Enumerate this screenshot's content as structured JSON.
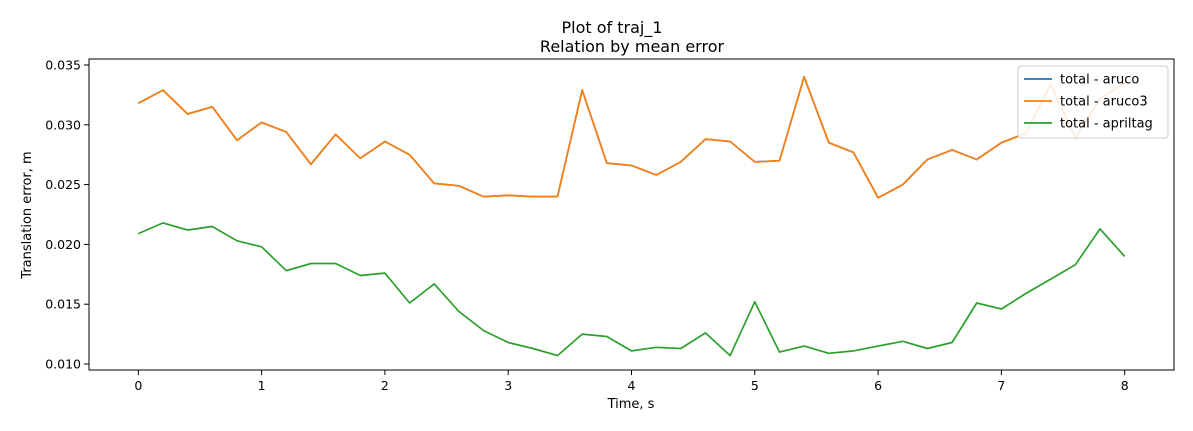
{
  "chart_data": {
    "type": "line",
    "title": "Plot of traj_1",
    "subtitle": "Relation by mean error",
    "xlabel": "Time, s",
    "ylabel": "Translation error, m",
    "xlim": [
      -0.4,
      8.4
    ],
    "ylim": [
      0.0095,
      0.0355
    ],
    "xticks": [
      0,
      1,
      2,
      3,
      4,
      5,
      6,
      7,
      8
    ],
    "xtick_labels": [
      "0",
      "1",
      "2",
      "3",
      "4",
      "5",
      "6",
      "7",
      "8"
    ],
    "yticks": [
      0.01,
      0.015,
      0.02,
      0.025,
      0.03,
      0.035
    ],
    "ytick_labels": [
      "0.010",
      "0.015",
      "0.020",
      "0.025",
      "0.030",
      "0.035"
    ],
    "grid": false,
    "legend_position": "top-right",
    "x": [
      0,
      0.2,
      0.4,
      0.6,
      0.8,
      1.0,
      1.2,
      1.4,
      1.6,
      1.8,
      2.0,
      2.2,
      2.4,
      2.6,
      2.8,
      3.0,
      3.2,
      3.4,
      3.6,
      3.8,
      4.0,
      4.2,
      4.4,
      4.6,
      4.8,
      5.0,
      5.2,
      5.4,
      5.6,
      5.8,
      6.0,
      6.2,
      6.4,
      6.6,
      6.8,
      7.0,
      7.2,
      7.4,
      7.6,
      7.8,
      8.0
    ],
    "series": [
      {
        "name": "total - aruco",
        "color": "#1f77b4",
        "values": [
          0.0318,
          0.0329,
          0.0309,
          0.0315,
          0.0287,
          0.0302,
          0.0294,
          0.0267,
          0.0292,
          0.0272,
          0.0286,
          0.0275,
          0.0251,
          0.0249,
          0.024,
          0.0241,
          0.024,
          0.024,
          0.0329,
          0.0268,
          0.0266,
          0.0258,
          0.0269,
          0.0288,
          0.0286,
          0.0269,
          0.027,
          0.034,
          0.0285,
          0.0277,
          0.0239,
          0.025,
          0.0271,
          0.0279,
          0.0271,
          0.0285,
          0.0293,
          0.0334,
          0.0289,
          0.0322,
          0.0335
        ]
      },
      {
        "name": "total - aruco3",
        "color": "#ff7f0e",
        "values": [
          0.0318,
          0.0329,
          0.0309,
          0.0315,
          0.0287,
          0.0302,
          0.0294,
          0.0267,
          0.0292,
          0.0272,
          0.0286,
          0.0275,
          0.0251,
          0.0249,
          0.024,
          0.0241,
          0.024,
          0.024,
          0.0329,
          0.0268,
          0.0266,
          0.0258,
          0.0269,
          0.0288,
          0.0286,
          0.0269,
          0.027,
          0.034,
          0.0285,
          0.0277,
          0.0239,
          0.025,
          0.0271,
          0.0279,
          0.0271,
          0.0285,
          0.0293,
          0.0334,
          0.0289,
          0.0322,
          0.0335
        ]
      },
      {
        "name": "total - apriltag",
        "color": "#2ca02c",
        "values": [
          0.0209,
          0.0218,
          0.0212,
          0.0215,
          0.0203,
          0.0198,
          0.0178,
          0.0184,
          0.0184,
          0.0174,
          0.0176,
          0.0151,
          0.0167,
          0.0144,
          0.0128,
          0.0118,
          0.0113,
          0.0107,
          0.0125,
          0.0123,
          0.0111,
          0.0114,
          0.0113,
          0.0126,
          0.0107,
          0.0152,
          0.011,
          0.0115,
          0.0109,
          0.0111,
          0.0115,
          0.0119,
          0.0113,
          0.0118,
          0.0151,
          0.0146,
          0.0159,
          0.0171,
          0.0183,
          0.0213,
          0.019
        ]
      }
    ]
  }
}
